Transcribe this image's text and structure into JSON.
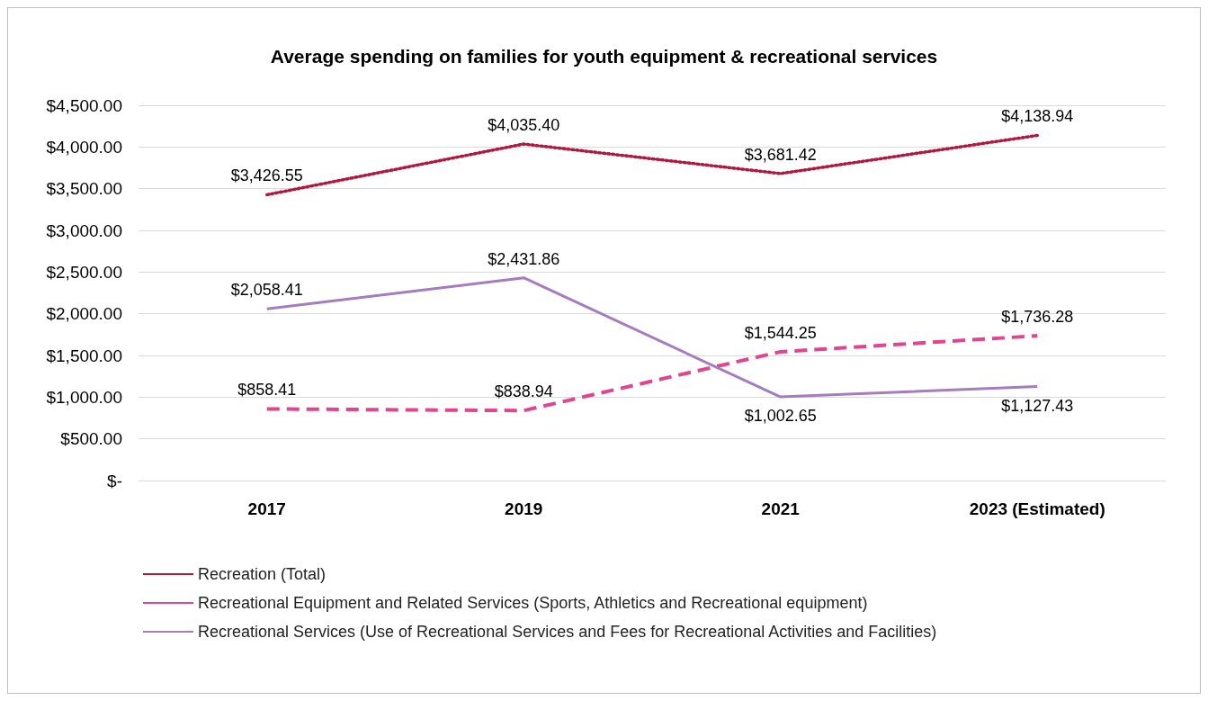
{
  "chart_data": {
    "type": "line",
    "title": "Average spending on families for youth equipment & recreational services",
    "categories": [
      "2017",
      "2019",
      "2021",
      "2023 (Estimated)"
    ],
    "series": [
      {
        "name": "Recreation (Total)",
        "color": "#b0183f",
        "line_style": "dotted",
        "values": [
          3426.55,
          4035.4,
          3681.42,
          4138.94
        ],
        "value_labels": [
          "$3,426.55",
          "$4,035.40",
          "$3,681.42",
          "$4,138.94"
        ]
      },
      {
        "name": "Recreational Equipment and Related Services (Sports, Athletics and Recreational equipment)",
        "color": "#e0458e",
        "line_style": "dashed",
        "values": [
          858.41,
          838.94,
          1544.25,
          1736.28
        ],
        "value_labels": [
          "$858.41",
          "$838.94",
          "$1,544.25",
          "$1,736.28"
        ]
      },
      {
        "name": "Recreational Services (Use of Recreational Services and Fees for Recreational Activities and Facilities)",
        "color": "#a57cbd",
        "line_style": "solid",
        "values": [
          2058.41,
          2431.86,
          1002.65,
          1127.43
        ],
        "value_labels": [
          "$2,058.41",
          "$2,431.86",
          "$1,002.65",
          "$1,127.43"
        ]
      }
    ],
    "ylim": [
      0,
      4500
    ],
    "yticks": [
      {
        "value": 0,
        "label": "$-"
      },
      {
        "value": 500,
        "label": "$500.00"
      },
      {
        "value": 1000,
        "label": "$1,000.00"
      },
      {
        "value": 1500,
        "label": "$1,500.00"
      },
      {
        "value": 2000,
        "label": "$2,000.00"
      },
      {
        "value": 2500,
        "label": "$2,500.00"
      },
      {
        "value": 3000,
        "label": "$3,000.00"
      },
      {
        "value": 3500,
        "label": "$3,500.00"
      },
      {
        "value": 4000,
        "label": "$4,000.00"
      },
      {
        "value": 4500,
        "label": "$4,500.00"
      }
    ],
    "grid": "y",
    "legend": "bottom",
    "marker": "none"
  }
}
